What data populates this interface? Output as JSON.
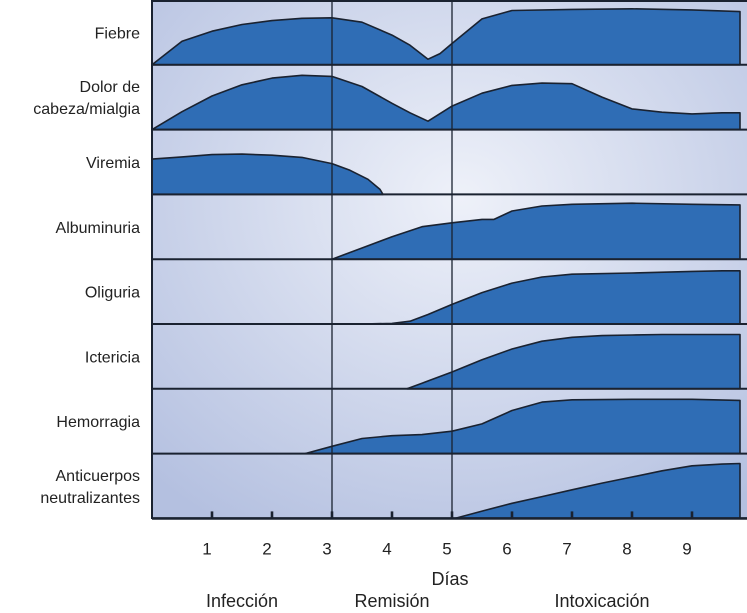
{
  "chart_data": {
    "type": "area",
    "xlabel": "Días",
    "x_ticks": [
      1,
      2,
      3,
      4,
      5,
      6,
      7,
      8,
      9
    ],
    "xlim": [
      0,
      10
    ],
    "colors": {
      "fill": "#2f6db5",
      "stroke": "#1a2230",
      "bg_edge": "#b4c0e0",
      "bg_center": "#eef1f9"
    },
    "phase_dividers": [
      3,
      5
    ],
    "phases": [
      {
        "label": "Infección",
        "center": 1.5
      },
      {
        "label": "Remisión",
        "center": 4
      },
      {
        "label": "Intoxicación",
        "center": 7.5
      }
    ],
    "rows": [
      {
        "label": [
          "Fiebre"
        ],
        "x": [
          0,
          0.5,
          1,
          1.5,
          2,
          2.5,
          3,
          3.5,
          4,
          4.3,
          4.6,
          4.8,
          5,
          5.5,
          6,
          7,
          8,
          9,
          9.8
        ],
        "y": [
          0,
          0.42,
          0.6,
          0.72,
          0.79,
          0.83,
          0.84,
          0.76,
          0.53,
          0.35,
          0.1,
          0.2,
          0.38,
          0.82,
          0.97,
          0.99,
          1,
          0.98,
          0.95
        ]
      },
      {
        "label": [
          "Dolor de",
          "cabeza/mialgia"
        ],
        "x": [
          0,
          0.5,
          1,
          1.5,
          2,
          2.5,
          3,
          3.5,
          4,
          4.3,
          4.6,
          5,
          5.5,
          6,
          6.5,
          7,
          7.5,
          8,
          8.5,
          9,
          9.5,
          9.8
        ],
        "y": [
          0,
          0.32,
          0.6,
          0.8,
          0.92,
          0.97,
          0.95,
          0.77,
          0.47,
          0.3,
          0.15,
          0.42,
          0.65,
          0.79,
          0.83,
          0.82,
          0.58,
          0.37,
          0.31,
          0.28,
          0.3,
          0.3
        ]
      },
      {
        "label": [
          "Viremia"
        ],
        "x": [
          0,
          0.5,
          1,
          1.5,
          2,
          2.5,
          3,
          3.3,
          3.6,
          3.8,
          3.85
        ],
        "y": [
          0.63,
          0.67,
          0.71,
          0.72,
          0.7,
          0.66,
          0.55,
          0.43,
          0.27,
          0.09,
          0
        ]
      },
      {
        "label": [
          "Albuminuria"
        ],
        "x": [
          3,
          3.5,
          4,
          4.5,
          5,
          5.5,
          5.7,
          6,
          6.5,
          7,
          8,
          9,
          9.8
        ],
        "y": [
          0,
          0.2,
          0.4,
          0.58,
          0.65,
          0.71,
          0.71,
          0.86,
          0.95,
          0.98,
          1,
          0.98,
          0.97
        ]
      },
      {
        "label": [
          "Oliguria"
        ],
        "x": [
          3.5,
          4,
          4.3,
          4.6,
          5,
          5.5,
          6,
          6.5,
          7,
          8,
          9,
          9.5,
          9.8
        ],
        "y": [
          0,
          0.01,
          0.05,
          0.17,
          0.35,
          0.56,
          0.73,
          0.84,
          0.89,
          0.91,
          0.94,
          0.95,
          0.95
        ]
      },
      {
        "label": [
          "Ictericia"
        ],
        "x": [
          4.25,
          4.5,
          5,
          5.5,
          6,
          6.5,
          7,
          7.5,
          8,
          8.5,
          9,
          9.5,
          9.8
        ],
        "y": [
          0,
          0.1,
          0.3,
          0.52,
          0.71,
          0.85,
          0.92,
          0.95,
          0.96,
          0.97,
          0.97,
          0.97,
          0.97
        ]
      },
      {
        "label": [
          "Hemorragia"
        ],
        "x": [
          2.55,
          3,
          3.5,
          4,
          4.5,
          5,
          5.5,
          6,
          6.5,
          7,
          8,
          9,
          9.8
        ],
        "y": [
          0,
          0.13,
          0.27,
          0.32,
          0.34,
          0.4,
          0.53,
          0.77,
          0.92,
          0.96,
          0.97,
          0.97,
          0.95
        ]
      },
      {
        "label": [
          "Anticuerpos",
          "neutralizantes"
        ],
        "x": [
          5.05,
          5.5,
          6,
          6.5,
          7,
          7.5,
          8,
          8.5,
          9,
          9.5,
          9.8
        ],
        "y": [
          0,
          0.13,
          0.27,
          0.39,
          0.51,
          0.63,
          0.74,
          0.85,
          0.94,
          0.97,
          0.98
        ]
      }
    ]
  }
}
